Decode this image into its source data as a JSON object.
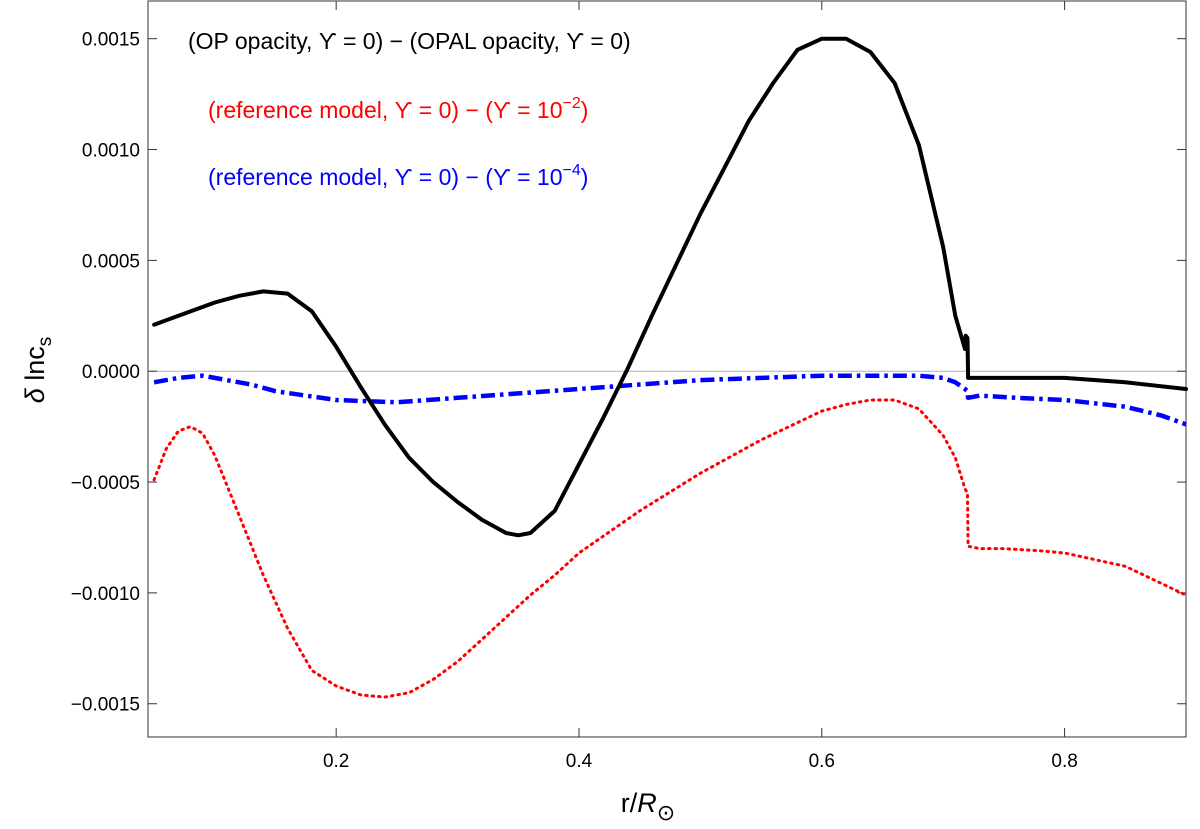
{
  "chart_data": {
    "type": "line",
    "title": "",
    "xlabel": {
      "prefix": "r/",
      "symbol": "R",
      "subscript": "⊙"
    },
    "ylabel": {
      "prefix": "δ",
      "main": " lnc",
      "subscript": "s"
    },
    "xlim": [
      0.045,
      0.9
    ],
    "ylim": [
      -0.00165,
      0.00167
    ],
    "grid": false,
    "zero_line": true,
    "x_ticks": [
      0.2,
      0.4,
      0.6,
      0.8
    ],
    "x_tick_labels": [
      "0.2",
      "0.4",
      "0.6",
      "0.8"
    ],
    "y_ticks": [
      0.0015,
      0.001,
      0.0005,
      0.0,
      -0.0005,
      -0.001,
      -0.0015
    ],
    "y_tick_labels": [
      "0.0015",
      "0.0010",
      "0.0005",
      "0.0000",
      "−0.0005",
      "−0.0010",
      "−0.0015"
    ],
    "legend_placement": "top-left",
    "legend": [
      {
        "text": "(OP opacity, ϒ = 0) − (OPAL opacity, ϒ = 0)",
        "sup": "",
        "tail": "",
        "color": "#000000"
      },
      {
        "text": "(reference model, ϒ = 0) − (ϒ = 10",
        "sup": "−2",
        "tail": ")",
        "color": "#ff0000"
      },
      {
        "text": "(reference model, ϒ = 0) − (ϒ = 10",
        "sup": "−4",
        "tail": ")",
        "color": "#0000ff"
      }
    ],
    "series": [
      {
        "name": "(OP opacity, ϒ = 0) − (OPAL opacity, ϒ = 0)",
        "color": "#000000",
        "style": "solid",
        "x": [
          0.05,
          0.06,
          0.08,
          0.1,
          0.12,
          0.14,
          0.16,
          0.18,
          0.2,
          0.22,
          0.24,
          0.26,
          0.28,
          0.3,
          0.32,
          0.34,
          0.35,
          0.36,
          0.38,
          0.4,
          0.42,
          0.44,
          0.46,
          0.48,
          0.5,
          0.52,
          0.54,
          0.56,
          0.58,
          0.6,
          0.62,
          0.64,
          0.66,
          0.68,
          0.7,
          0.71,
          0.718,
          0.7185,
          0.72,
          0.7205,
          0.721,
          0.73,
          0.75,
          0.78,
          0.8,
          0.85,
          0.9
        ],
        "y": [
          0.00021,
          0.00023,
          0.00027,
          0.00031,
          0.00034,
          0.00036,
          0.00035,
          0.00027,
          0.00011,
          -7e-05,
          -0.00024,
          -0.00039,
          -0.0005,
          -0.00059,
          -0.00067,
          -0.00073,
          -0.00074,
          -0.00073,
          -0.00063,
          -0.00042,
          -0.00021,
          1e-05,
          0.00025,
          0.00048,
          0.00071,
          0.00092,
          0.00113,
          0.0013,
          0.00145,
          0.0015,
          0.0015,
          0.00144,
          0.0013,
          0.00102,
          0.00056,
          0.00025,
          0.0001,
          0.00016,
          0.00015,
          -3e-05,
          -3e-05,
          -3e-05,
          -3e-05,
          -3e-05,
          -3e-05,
          -5e-05,
          -8e-05
        ]
      },
      {
        "name": "(reference model, ϒ = 0) − (ϒ = 10−2)",
        "color": "#ff0000",
        "style": "dotted",
        "x": [
          0.05,
          0.06,
          0.07,
          0.08,
          0.09,
          0.1,
          0.12,
          0.14,
          0.16,
          0.18,
          0.2,
          0.22,
          0.24,
          0.26,
          0.28,
          0.3,
          0.32,
          0.34,
          0.36,
          0.38,
          0.4,
          0.45,
          0.5,
          0.55,
          0.6,
          0.62,
          0.64,
          0.66,
          0.68,
          0.7,
          0.71,
          0.718,
          0.72,
          0.7205,
          0.73,
          0.75,
          0.78,
          0.8,
          0.85,
          0.9
        ],
        "y": [
          -0.00049,
          -0.00035,
          -0.00027,
          -0.00025,
          -0.00028,
          -0.00038,
          -0.00065,
          -0.00092,
          -0.00116,
          -0.00135,
          -0.00142,
          -0.00146,
          -0.00147,
          -0.00145,
          -0.00139,
          -0.00131,
          -0.00121,
          -0.00111,
          -0.00101,
          -0.00092,
          -0.00082,
          -0.00063,
          -0.00046,
          -0.00031,
          -0.00018,
          -0.00015,
          -0.00013,
          -0.00013,
          -0.00017,
          -0.00029,
          -0.00039,
          -0.00053,
          -0.00055,
          -0.00079,
          -0.0008,
          -0.0008,
          -0.00081,
          -0.00082,
          -0.00088,
          -0.00101
        ]
      },
      {
        "name": "(reference model, ϒ = 0) − (ϒ = 10−4)",
        "color": "#0000ff",
        "style": "dashdot",
        "x": [
          0.05,
          0.07,
          0.09,
          0.11,
          0.13,
          0.15,
          0.2,
          0.25,
          0.3,
          0.35,
          0.4,
          0.45,
          0.5,
          0.55,
          0.6,
          0.65,
          0.68,
          0.7,
          0.71,
          0.718,
          0.72,
          0.7205,
          0.73,
          0.76,
          0.8,
          0.85,
          0.88,
          0.9
        ],
        "y": [
          -5e-05,
          -3e-05,
          -2e-05,
          -4e-05,
          -6e-05,
          -9e-05,
          -0.00013,
          -0.00014,
          -0.00012,
          -0.0001,
          -8e-05,
          -6e-05,
          -4e-05,
          -3e-05,
          -2e-05,
          -2e-05,
          -2e-05,
          -3e-05,
          -5e-05,
          -8e-05,
          -9e-05,
          -0.00012,
          -0.00011,
          -0.00012,
          -0.00013,
          -0.00016,
          -0.0002,
          -0.00024
        ]
      }
    ]
  }
}
